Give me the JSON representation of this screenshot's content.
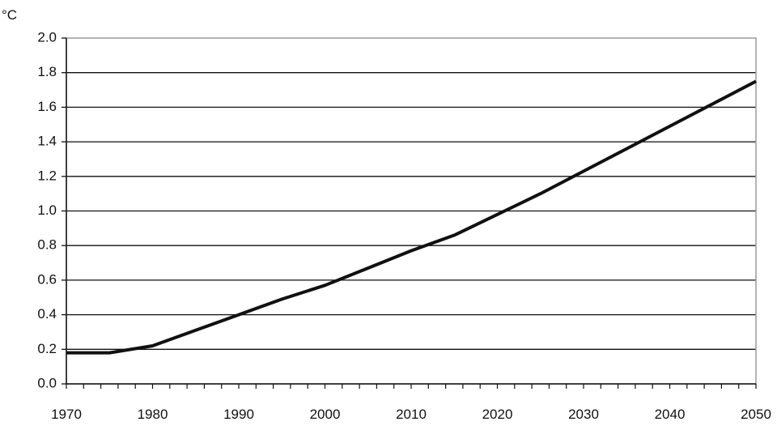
{
  "chart_data": {
    "type": "line",
    "ylabel": "°C",
    "xlim": [
      1970,
      2050
    ],
    "ylim": [
      0.0,
      2.0
    ],
    "x_ticks": [
      "1970",
      "1980",
      "1990",
      "2000",
      "2010",
      "2020",
      "2030",
      "2040",
      "2050"
    ],
    "y_ticks": [
      "0.0",
      "0.2",
      "0.4",
      "0.6",
      "0.8",
      "1.0",
      "1.2",
      "1.4",
      "1.6",
      "1.8",
      "2.0"
    ],
    "grid": true,
    "series": [
      {
        "color": "#111111",
        "x": [
          1970,
          1975,
          1980,
          1985,
          1990,
          1995,
          2000,
          2005,
          2010,
          2015,
          2020,
          2025,
          2030,
          2035,
          2040,
          2045,
          2050
        ],
        "y": [
          0.18,
          0.18,
          0.22,
          0.31,
          0.4,
          0.49,
          0.57,
          0.67,
          0.77,
          0.86,
          0.98,
          1.1,
          1.23,
          1.36,
          1.49,
          1.62,
          1.75
        ]
      }
    ]
  }
}
